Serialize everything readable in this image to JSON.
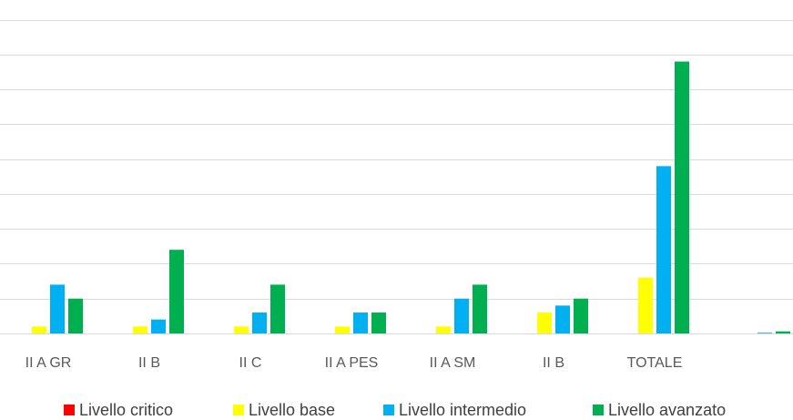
{
  "chart_data": {
    "type": "bar",
    "categories": [
      "II A GR",
      "II B",
      "II C",
      "II A PES",
      "II A SM",
      "II B",
      "TOTALE",
      ""
    ],
    "series": [
      {
        "name": "Livello critico",
        "color": "#ff0000",
        "values": [
          0,
          0,
          0,
          0,
          0,
          0,
          0,
          0
        ]
      },
      {
        "name": "Livello base",
        "color": "#ffff00",
        "values": [
          1,
          1,
          1,
          1,
          1,
          3,
          8,
          0
        ]
      },
      {
        "name": "Livello intermedio",
        "color": "#00b0f0",
        "values": [
          7,
          2,
          3,
          3,
          5,
          4,
          24,
          0.1
        ]
      },
      {
        "name": "Livello avanzato",
        "color": "#00b050",
        "values": [
          5,
          12,
          7,
          3,
          7,
          5,
          39,
          0.3
        ]
      }
    ],
    "ylim": [
      0,
      46
    ],
    "grid_step": 5,
    "grid": true,
    "legend_position": "bottom"
  }
}
